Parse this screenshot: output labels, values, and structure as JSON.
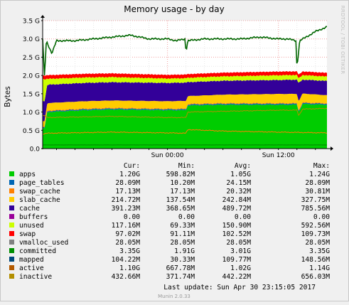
{
  "chart_data": {
    "type": "area",
    "title": "Memory usage - by day",
    "ylabel": "Bytes",
    "side_label": "RRDTOOL / TOBI OETIKER",
    "ylim": [
      0,
      3.5
    ],
    "y_ticks": [
      {
        "value": 0.0,
        "label": "0.0"
      },
      {
        "value": 0.5,
        "label": "0.5 G"
      },
      {
        "value": 1.0,
        "label": "1.0 G"
      },
      {
        "value": 1.5,
        "label": "1.5 G"
      },
      {
        "value": 2.0,
        "label": "2.0 G"
      },
      {
        "value": 2.5,
        "label": "2.5 G"
      },
      {
        "value": 3.0,
        "label": "3.0 G"
      },
      {
        "value": 3.5,
        "label": "3.5 G"
      }
    ],
    "x_range_hours": [
      -13.5,
      17.25
    ],
    "x_ticks": [
      {
        "value": 0,
        "label": "Sun 00:00"
      },
      {
        "value": 12,
        "label": "Sun 12:00"
      }
    ],
    "stack": [
      {
        "key": "apps",
        "color": "#00cc00",
        "points": [
          [
            -13.5,
            0.55
          ],
          [
            -13.3,
            0.55
          ],
          [
            -13,
            1.0
          ],
          [
            -9,
            1.05
          ],
          [
            -6,
            1.07
          ],
          [
            0,
            1.05
          ],
          [
            2,
            1.05
          ],
          [
            2.2,
            1.18
          ],
          [
            6,
            1.2
          ],
          [
            12,
            1.2
          ],
          [
            14,
            1.2
          ],
          [
            14.2,
            1.0
          ],
          [
            14.6,
            1.22
          ],
          [
            17.25,
            1.2
          ]
        ]
      },
      {
        "key": "page_tables",
        "color": "#0066b3",
        "points": [
          [
            -13.5,
            0.026
          ],
          [
            17.25,
            0.028
          ]
        ]
      },
      {
        "key": "swap_cache",
        "color": "#ff8000",
        "points": [
          [
            -13.5,
            0.02
          ],
          [
            17.25,
            0.017
          ]
        ]
      },
      {
        "key": "slab_cache",
        "color": "#ffcc00",
        "points": [
          [
            -13.5,
            0.15
          ],
          [
            -13.3,
            0.15
          ],
          [
            -13,
            0.2
          ],
          [
            0,
            0.2
          ],
          [
            6,
            0.23
          ],
          [
            12,
            0.25
          ],
          [
            14,
            0.25
          ],
          [
            14.6,
            0.24
          ],
          [
            17.25,
            0.215
          ]
        ]
      },
      {
        "key": "cache",
        "color": "#330099",
        "points": [
          [
            -13.5,
            0.55
          ],
          [
            -13.3,
            0.55
          ],
          [
            -13,
            0.5
          ],
          [
            -6,
            0.5
          ],
          [
            0,
            0.5
          ],
          [
            2,
            0.5
          ],
          [
            2.2,
            0.38
          ],
          [
            6,
            0.38
          ],
          [
            12,
            0.38
          ],
          [
            14,
            0.39
          ],
          [
            14.2,
            0.5
          ],
          [
            14.6,
            0.38
          ],
          [
            17.25,
            0.39
          ]
        ]
      },
      {
        "key": "buffers",
        "color": "#990099",
        "points": [
          [
            -13.5,
            0.0
          ],
          [
            17.25,
            0.0
          ]
        ]
      },
      {
        "key": "unused",
        "color": "#ccff00",
        "points": [
          [
            -13.5,
            0.6
          ],
          [
            -13.3,
            0.6
          ],
          [
            -13,
            0.16
          ],
          [
            -6,
            0.14
          ],
          [
            0,
            0.12
          ],
          [
            6,
            0.12
          ],
          [
            12,
            0.13
          ],
          [
            17.25,
            0.12
          ]
        ]
      },
      {
        "key": "swap",
        "color": "#ff0000",
        "points": [
          [
            -13.5,
            0.1
          ],
          [
            17.25,
            0.1
          ]
        ]
      }
    ],
    "committed_line": {
      "key": "committed",
      "color": "#006600",
      "points": [
        [
          -13.5,
          3.0
        ],
        [
          -13.3,
          1.95
        ],
        [
          -13.1,
          2.95
        ],
        [
          -12.5,
          2.6
        ],
        [
          -12,
          2.95
        ],
        [
          -10,
          2.95
        ],
        [
          -8,
          3.0
        ],
        [
          -6,
          3.05
        ],
        [
          -4,
          3.1
        ],
        [
          -2,
          3.0
        ],
        [
          0,
          3.0
        ],
        [
          1,
          2.95
        ],
        [
          1.9,
          3.0
        ],
        [
          2.0,
          2.65
        ],
        [
          2.2,
          2.95
        ],
        [
          4,
          3.0
        ],
        [
          6,
          3.0
        ],
        [
          8,
          3.0
        ],
        [
          10,
          3.05
        ],
        [
          12,
          3.0
        ],
        [
          13,
          3.0
        ],
        [
          13.9,
          2.95
        ],
        [
          14.0,
          2.2
        ],
        [
          14.3,
          2.95
        ],
        [
          15,
          3.05
        ],
        [
          16,
          3.2
        ],
        [
          17.25,
          3.33
        ]
      ]
    },
    "mapped_line": {
      "key": "mapped",
      "color": "#008f00",
      "points": [
        [
          -13.5,
          0.1
        ],
        [
          17.25,
          0.1
        ]
      ]
    },
    "active_line": {
      "key": "active",
      "color": "#b38f00",
      "points": [
        [
          -13.5,
          0.9
        ],
        [
          -13.3,
          0.9
        ],
        [
          -13,
          0.85
        ],
        [
          -6,
          0.88
        ],
        [
          0,
          0.85
        ],
        [
          2,
          0.85
        ],
        [
          2.2,
          1.0
        ],
        [
          6,
          1.02
        ],
        [
          12,
          1.05
        ],
        [
          14,
          1.05
        ],
        [
          14.2,
          0.9
        ],
        [
          14.6,
          1.08
        ],
        [
          17.25,
          1.1
        ]
      ]
    },
    "inactive_line": {
      "key": "inactive",
      "color": "#ff8000",
      "points": [
        [
          -13.5,
          0.4
        ],
        [
          -13,
          0.42
        ],
        [
          -6,
          0.45
        ],
        [
          0,
          0.43
        ],
        [
          2,
          0.42
        ],
        [
          2.2,
          0.52
        ],
        [
          6,
          0.48
        ],
        [
          12,
          0.45
        ],
        [
          17.25,
          0.43
        ]
      ]
    },
    "legend_headers": [
      "Cur:",
      "Min:",
      "Avg:",
      "Max:"
    ],
    "legend": [
      {
        "name": "apps",
        "color": "#00cc00",
        "cur": "1.20G",
        "min": "598.82M",
        "avg": "1.05G",
        "max": "1.24G"
      },
      {
        "name": "page_tables",
        "color": "#0066b3",
        "cur": "28.09M",
        "min": "10.20M",
        "avg": "24.15M",
        "max": "28.09M"
      },
      {
        "name": "swap_cache",
        "color": "#ff8000",
        "cur": "17.13M",
        "min": "17.13M",
        "avg": "20.32M",
        "max": "30.81M"
      },
      {
        "name": "slab_cache",
        "color": "#ffcc00",
        "cur": "214.72M",
        "min": "137.54M",
        "avg": "242.84M",
        "max": "327.75M"
      },
      {
        "name": "cache",
        "color": "#330099",
        "cur": "391.23M",
        "min": "368.65M",
        "avg": "489.72M",
        "max": "785.56M"
      },
      {
        "name": "buffers",
        "color": "#990099",
        "cur": "0.00",
        "min": "0.00",
        "avg": "0.00",
        "max": "0.00"
      },
      {
        "name": "unused",
        "color": "#ccff00",
        "cur": "117.16M",
        "min": "69.33M",
        "avg": "150.90M",
        "max": "592.56M"
      },
      {
        "name": "swap",
        "color": "#ff0000",
        "cur": "97.02M",
        "min": "91.11M",
        "avg": "102.52M",
        "max": "109.73M"
      },
      {
        "name": "vmalloc_used",
        "color": "#808080",
        "cur": "28.05M",
        "min": "28.05M",
        "avg": "28.05M",
        "max": "28.05M"
      },
      {
        "name": "committed",
        "color": "#008f00",
        "cur": "3.35G",
        "min": "1.91G",
        "avg": "3.01G",
        "max": "3.35G"
      },
      {
        "name": "mapped",
        "color": "#00487d",
        "cur": "104.22M",
        "min": "30.33M",
        "avg": "109.77M",
        "max": "148.56M"
      },
      {
        "name": "active",
        "color": "#b35a00",
        "cur": "1.10G",
        "min": "667.78M",
        "avg": "1.02G",
        "max": "1.14G"
      },
      {
        "name": "inactive",
        "color": "#b38f00",
        "cur": "432.66M",
        "min": "371.74M",
        "avg": "442.22M",
        "max": "656.03M"
      }
    ],
    "last_update": "Last update:  Sun Apr 30 23:15:05 2017",
    "footer": "Munin 2.0.33"
  }
}
